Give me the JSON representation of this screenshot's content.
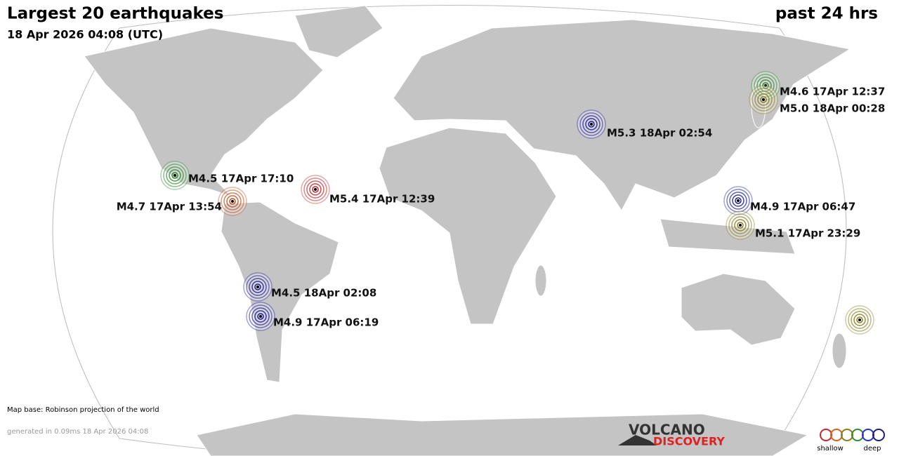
{
  "header": {
    "title": "Largest 20 earthquakes",
    "period": "past 24 hrs",
    "timestamp": "18 Apr 2026 04:08 (UTC)"
  },
  "quakes": [
    {
      "label": "M4.6 17Apr 12:37",
      "color": "#2e8b2e"
    },
    {
      "label": "M5.0 18Apr 00:28",
      "color": "#8b7d1e"
    },
    {
      "label": "M5.3 18Apr 02:54",
      "color": "#1c1ca0"
    },
    {
      "label": "M4.5 17Apr 17:10",
      "color": "#2e8b2e"
    },
    {
      "label": "M5.4 17Apr 12:39",
      "color": "#c0282d"
    },
    {
      "label": "M4.7 17Apr 13:54",
      "color": "#c0501e"
    },
    {
      "label": "M4.9 17Apr 06:47",
      "color": "#1c1ca0"
    },
    {
      "label": "M5.1 17Apr 23:29",
      "color": "#8b7d1e"
    },
    {
      "label": "M4.5 18Apr 02:08",
      "color": "#1c1ca0"
    },
    {
      "label": "M4.9 17Apr 06:19",
      "color": "#1c1ca0"
    },
    {
      "color": "#8b7d1e"
    }
  ],
  "footer": {
    "map_base": "Map base: Robinson projection of the world",
    "generated": "generated in 0.09ms 18 Apr 2026 04:08",
    "brand_top": "VOLCANO",
    "brand_bottom": "DISCOVERY",
    "legend_left": "shallow",
    "legend_right": "deep"
  }
}
